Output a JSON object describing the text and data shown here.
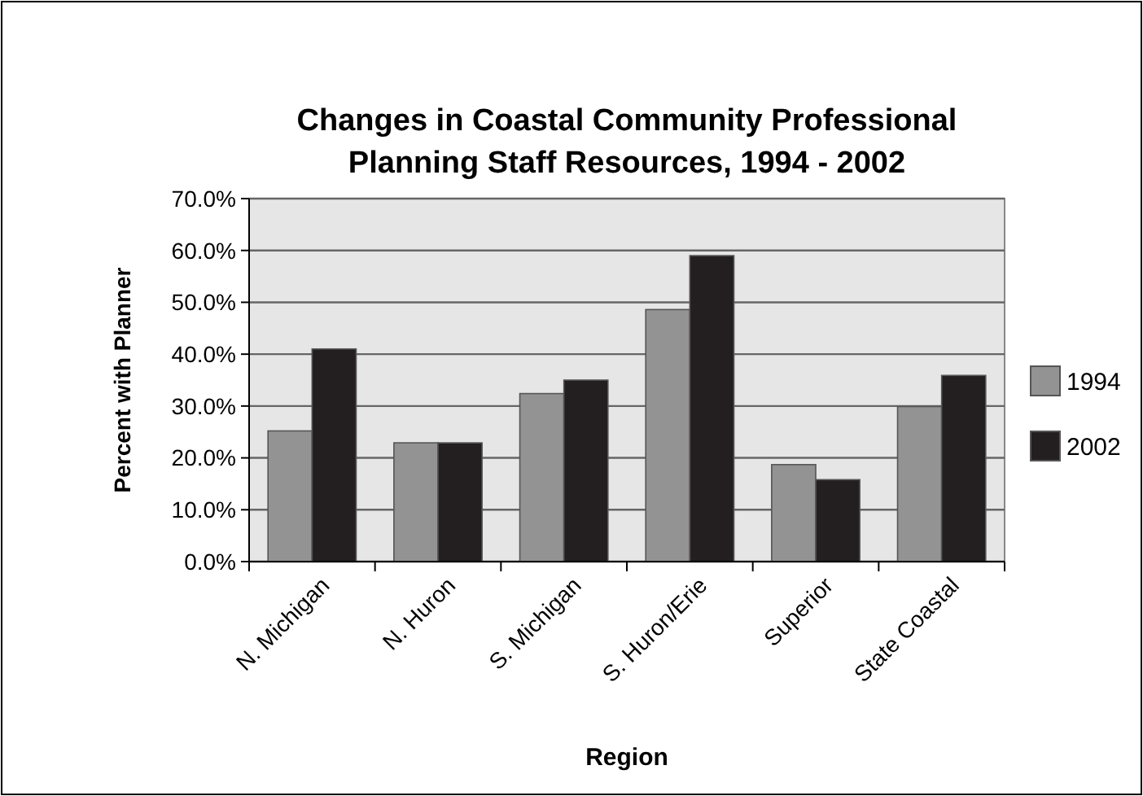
{
  "chart_data": {
    "type": "bar",
    "title": "Changes in Coastal Community Professional Planning Staff Resources, 1994 - 2002",
    "xlabel": "Region",
    "ylabel": "Percent with Planner",
    "categories": [
      "N. Michigan",
      "N. Huron",
      "S. Michigan",
      "S. Huron/Erie",
      "Superior",
      "State Coastal"
    ],
    "series": [
      {
        "name": "1994",
        "color": "#939393",
        "values": [
          25.2,
          22.9,
          32.4,
          48.6,
          18.7,
          29.9
        ]
      },
      {
        "name": "2002",
        "color": "#231f20",
        "values": [
          41.0,
          22.9,
          35.0,
          59.0,
          15.8,
          35.9
        ]
      }
    ],
    "ylim": [
      0,
      70
    ],
    "yticks": [
      {
        "value": 0,
        "label": "0.0%"
      },
      {
        "value": 10,
        "label": "10.0%"
      },
      {
        "value": 20,
        "label": "20.0%"
      },
      {
        "value": 30,
        "label": "30.0%"
      },
      {
        "value": 40,
        "label": "40.0%"
      },
      {
        "value": 50,
        "label": "50.0%"
      },
      {
        "value": 60,
        "label": "60.0%"
      },
      {
        "value": 70,
        "label": "70.0%"
      }
    ],
    "grid": "y",
    "legend": "right"
  }
}
